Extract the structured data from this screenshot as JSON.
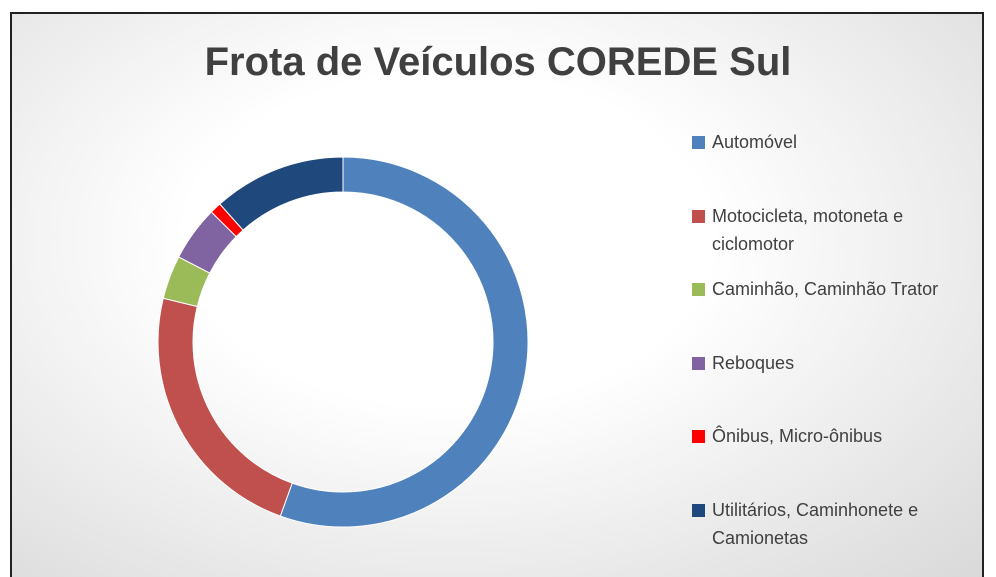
{
  "chart_data": {
    "type": "donut",
    "title": "Frota de Veículos COREDE Sul",
    "series": [
      {
        "name": "Automóvel",
        "color": "#4f81bd",
        "value": 55.5
      },
      {
        "name": "Motocicleta, motoneta e ciclomotor",
        "color": "#c0504d",
        "value": 23.3
      },
      {
        "name": "Caminhão, Caminhão Trator",
        "color": "#9bbb59",
        "value": 3.8
      },
      {
        "name": "Reboques",
        "color": "#8064a2",
        "value": 4.8
      },
      {
        "name": "Ônibus,  Micro-ônibus",
        "color": "#ff0000",
        "value": 1.0
      },
      {
        "name": "Utilitários, Caminhonete e Camionetas",
        "color": "#1f497d",
        "value": 11.6
      }
    ],
    "legend": "right"
  }
}
